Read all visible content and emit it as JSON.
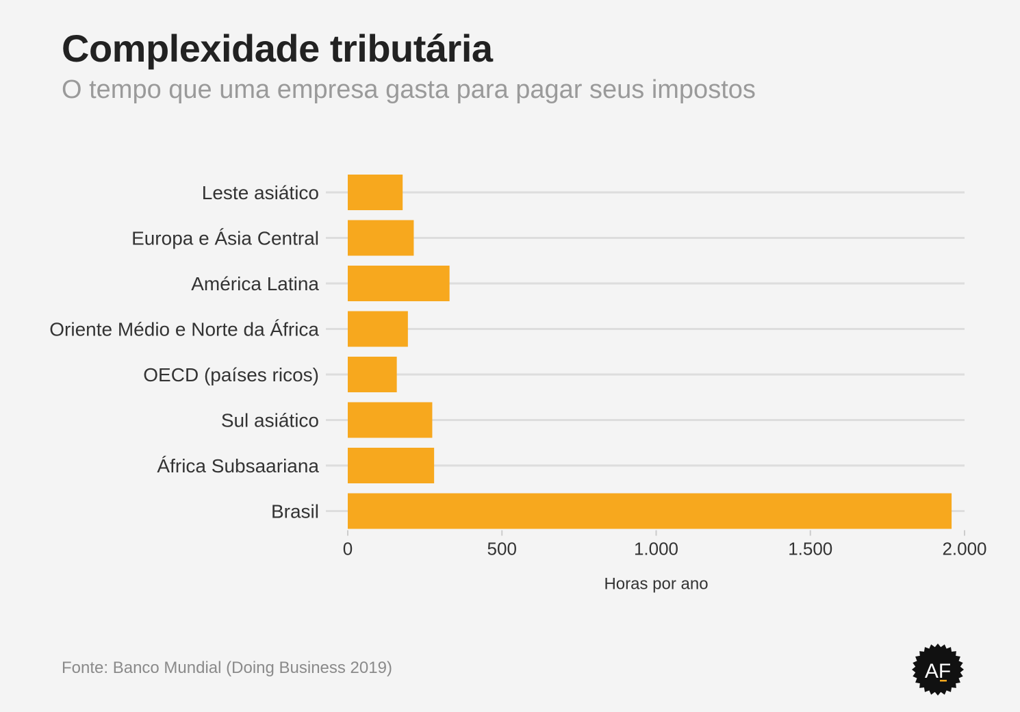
{
  "header": {
    "title": "Complexidade tributária",
    "subtitle": "O tempo que uma empresa gasta para pagar seus impostos"
  },
  "footer": {
    "source": "Fonte: Banco Mundial (Doing Business 2019)",
    "logo_text": "AF"
  },
  "colors": {
    "bar": "#f7a81e",
    "grid": "#dddddd",
    "text": "#333333",
    "logo_bg": "#111111",
    "logo_accent": "#f7a81e"
  },
  "chart_data": {
    "type": "bar",
    "orientation": "horizontal",
    "categories": [
      "Leste asiático",
      "Europa e Ásia Central",
      "América Latina",
      "Oriente Médio e Norte da África",
      "OECD (países ricos)",
      "Sul asiático",
      "África Subsaariana",
      "Brasil"
    ],
    "values": [
      178,
      214,
      330,
      195,
      159,
      274,
      280,
      1958
    ],
    "xlabel": "Horas por ano",
    "xlim": [
      0,
      2000
    ],
    "xticks": [
      0,
      500,
      1000,
      1500,
      2000
    ],
    "xtick_labels": [
      "0",
      "500",
      "1.000",
      "1.500",
      "2.000"
    ],
    "grid": true
  }
}
